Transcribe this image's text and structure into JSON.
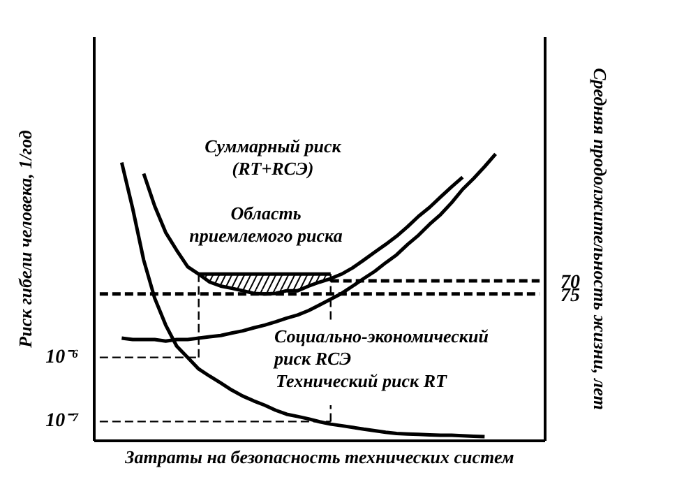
{
  "chart_data": {
    "type": "line",
    "xlabel": "Затраты на безопасность технических систем",
    "ylabel": "Риск гибели человека, 1/год",
    "y2label": "Средняя продолжительность жизни, лет",
    "categories": [
      null,
      null,
      null,
      null,
      null,
      null,
      null,
      null,
      null,
      null,
      null,
      null,
      null,
      null,
      null,
      null,
      null,
      null,
      null,
      null,
      null,
      null,
      null,
      null,
      null,
      null,
      null,
      null,
      null,
      null,
      null,
      null,
      null,
      null,
      null,
      null,
      null,
      null,
      null,
      null,
      null
    ],
    "log": "y",
    "ylim": [
      5e-08,
      0.1
    ],
    "yticks": [
      {
        "value": 1e-07,
        "label": "10⁻⁷"
      },
      {
        "value": 1e-06,
        "label": "10⁻⁶"
      }
    ],
    "y2lim": [
      131,
      -23
    ],
    "y2ticks": [
      70,
      75
    ],
    "grid": false,
    "series": [
      {
        "color": "#000000",
        "line_style": "solid",
        "values": [
          null,
          null,
          0.0011,
          0.00021,
          3.3e-05,
          8.4e-06,
          3.2e-06,
          1.5e-06,
          1e-06,
          6.6e-07,
          5.1e-07,
          4e-07,
          3.1e-07,
          2.5e-07,
          2.1e-07,
          1.8e-07,
          1.5e-07,
          1.3e-07,
          1.2e-07,
          1.1e-07,
          9.9e-08,
          9.1e-08,
          8.6e-08,
          8.1e-08,
          7.6e-08,
          7.2e-08,
          6.8e-08,
          6.5e-08,
          6.4e-08,
          6.3e-08,
          6.2e-08,
          6.1e-08,
          6.1e-08,
          6e-08,
          5.9e-08,
          5.8e-08,
          null,
          null,
          null,
          null,
          null
        ]
      },
      {
        "color": "#000000",
        "line_style": "solid",
        "values": [
          null,
          null,
          2e-06,
          1.9e-06,
          1.9e-06,
          1.9e-06,
          1.8e-06,
          1.9e-06,
          1.9e-06,
          2e-06,
          2.1e-06,
          2.2e-06,
          2.4e-06,
          2.6e-06,
          2.9e-06,
          3.2e-06,
          3.6e-06,
          4.1e-06,
          4.6e-06,
          5.4e-06,
          6.6e-06,
          8.1e-06,
          1e-05,
          1.3e-05,
          1.7e-05,
          2.2e-05,
          3e-05,
          4e-05,
          5.8e-05,
          8.1e-05,
          0.00012,
          0.00017,
          0.00026,
          0.00042,
          0.00062,
          0.00095,
          0.0015,
          null,
          null,
          null,
          null
        ]
      },
      {
        "color": "#000000",
        "line_style": "solid",
        "values": [
          null,
          null,
          null,
          null,
          0.00074,
          0.00023,
          8.9e-05,
          4.7e-05,
          2.6e-05,
          2e-05,
          1.5e-05,
          1.3e-05,
          1.2e-05,
          1.1e-05,
          1e-05,
          9.8e-06,
          1e-05,
          1.1e-05,
          1.1e-05,
          1.3e-05,
          1.5e-05,
          1.7e-05,
          2e-05,
          2.5e-05,
          3.3e-05,
          4.4e-05,
          5.8e-05,
          7.8e-05,
          0.00011,
          0.00016,
          0.00022,
          0.00032,
          0.00046,
          0.00065,
          null,
          null,
          null,
          null,
          null,
          null,
          null
        ]
      },
      {
        "color": "#000000",
        "line_style": "solid",
        "values": [
          null,
          null,
          null,
          null,
          null,
          null,
          null,
          null,
          null,
          2e-05,
          2e-05,
          2e-05,
          2e-05,
          2e-05,
          2e-05,
          2e-05,
          2e-05,
          2e-05,
          2e-05,
          2e-05,
          2e-05,
          2e-05,
          null,
          null,
          null,
          null,
          null,
          null,
          null,
          null,
          null,
          null,
          null,
          null,
          null,
          null,
          null,
          null,
          null,
          null,
          null
        ],
        "lower": [
          null,
          null,
          null,
          null,
          null,
          null,
          null,
          null,
          null,
          2e-05,
          1.5e-05,
          1.3e-05,
          1.2e-05,
          1.1e-05,
          1e-05,
          9.8e-06,
          1e-05,
          1.1e-05,
          1.1e-05,
          1.3e-05,
          1.5e-05,
          1.7e-05,
          null,
          null,
          null,
          null,
          null,
          null,
          null,
          null,
          null,
          null,
          null,
          null,
          null,
          null,
          null,
          null,
          null,
          null,
          null
        ],
        "upper": [
          null,
          null,
          null,
          null,
          null,
          null,
          null,
          null,
          null,
          2e-05,
          2e-05,
          2e-05,
          2e-05,
          2e-05,
          2e-05,
          2e-05,
          2e-05,
          2e-05,
          2e-05,
          2e-05,
          2e-05,
          2e-05,
          null,
          null,
          null,
          null,
          null,
          null,
          null,
          null,
          null,
          null,
          null,
          null,
          null,
          null,
          null,
          null,
          null,
          null,
          null
        ],
        "errors": [
          null,
          null,
          null,
          null,
          null,
          null,
          null,
          null,
          null,
          null,
          null,
          null,
          null,
          null,
          null,
          null,
          null,
          null,
          null,
          null,
          null,
          [
            3.9e-06,
            2e-05
          ],
          null,
          null,
          null,
          null,
          null,
          null,
          null,
          null,
          null,
          null,
          null,
          null,
          null,
          null,
          null,
          null,
          null,
          null,
          null
        ]
      },
      {
        "color": "#000000",
        "line_style": "dashed",
        "values": [
          1e-06,
          1e-06,
          1e-06,
          1e-06,
          1e-06,
          1e-06,
          1e-06,
          1e-06,
          1e-06,
          1e-06,
          null,
          null,
          null,
          null,
          null,
          null,
          null,
          null,
          null,
          null,
          null,
          null,
          null,
          null,
          null,
          null,
          null,
          null,
          null,
          null,
          null,
          null,
          null,
          null,
          null,
          null,
          null,
          null,
          null,
          null,
          null
        ],
        "errors": [
          null,
          null,
          null,
          null,
          null,
          null,
          null,
          null,
          null,
          [
            1e-06,
            2e-05
          ],
          null,
          null,
          null,
          null,
          null,
          null,
          null,
          null,
          null,
          null,
          null,
          null,
          null,
          null,
          null,
          null,
          null,
          null,
          null,
          null,
          null,
          null,
          null,
          null,
          null,
          null,
          null,
          null,
          null,
          null,
          null
        ]
      },
      {
        "color": "#000000",
        "line_style": "dashed",
        "values": [
          1e-07,
          1e-07,
          1e-07,
          1e-07,
          1e-07,
          1e-07,
          1e-07,
          1e-07,
          1e-07,
          1e-07,
          1e-07,
          1e-07,
          1e-07,
          1e-07,
          1e-07,
          1e-07,
          1e-07,
          1e-07,
          1e-07,
          1e-07,
          1e-07,
          1e-07,
          null,
          null,
          null,
          null,
          null,
          null,
          null,
          null,
          null,
          null,
          null,
          null,
          null,
          null,
          null,
          null,
          null,
          null,
          null
        ],
        "errors": [
          null,
          null,
          null,
          null,
          null,
          null,
          null,
          null,
          null,
          null,
          null,
          null,
          null,
          null,
          null,
          null,
          null,
          null,
          null,
          null,
          null,
          [
            1e-07,
            1.8e-07
          ],
          null,
          null,
          null,
          null,
          null,
          null,
          null,
          null,
          null,
          null,
          null,
          null,
          null,
          null,
          null,
          null,
          null,
          null,
          null
        ]
      },
      {
        "color": "#000000",
        "line_style": "dashed",
        "axis": "y2",
        "values": [
          75,
          75,
          75,
          75,
          75,
          75,
          75,
          75,
          75,
          75,
          75,
          75,
          75,
          75,
          75,
          75,
          75,
          75,
          75,
          75,
          75,
          75,
          75,
          75,
          75,
          75,
          75,
          75,
          75,
          75,
          75,
          75,
          75,
          75,
          75,
          75,
          75,
          75,
          75,
          75,
          75
        ]
      },
      {
        "color": "#000000",
        "line_style": "dashed",
        "axis": "y2",
        "values": [
          null,
          null,
          null,
          null,
          null,
          null,
          null,
          null,
          null,
          null,
          null,
          null,
          null,
          null,
          null,
          null,
          null,
          null,
          null,
          null,
          null,
          70,
          70,
          70,
          70,
          70,
          70,
          70,
          70,
          70,
          70,
          70,
          70,
          70,
          70,
          70,
          70,
          70,
          70,
          70,
          70
        ]
      }
    ],
    "annotations": [
      "Суммарный риск\n(RT+RСЭ)",
      "Область\nприемлемого риска",
      "Социально-экономический\nриск RСЭ",
      "Технический риск RT"
    ]
  }
}
